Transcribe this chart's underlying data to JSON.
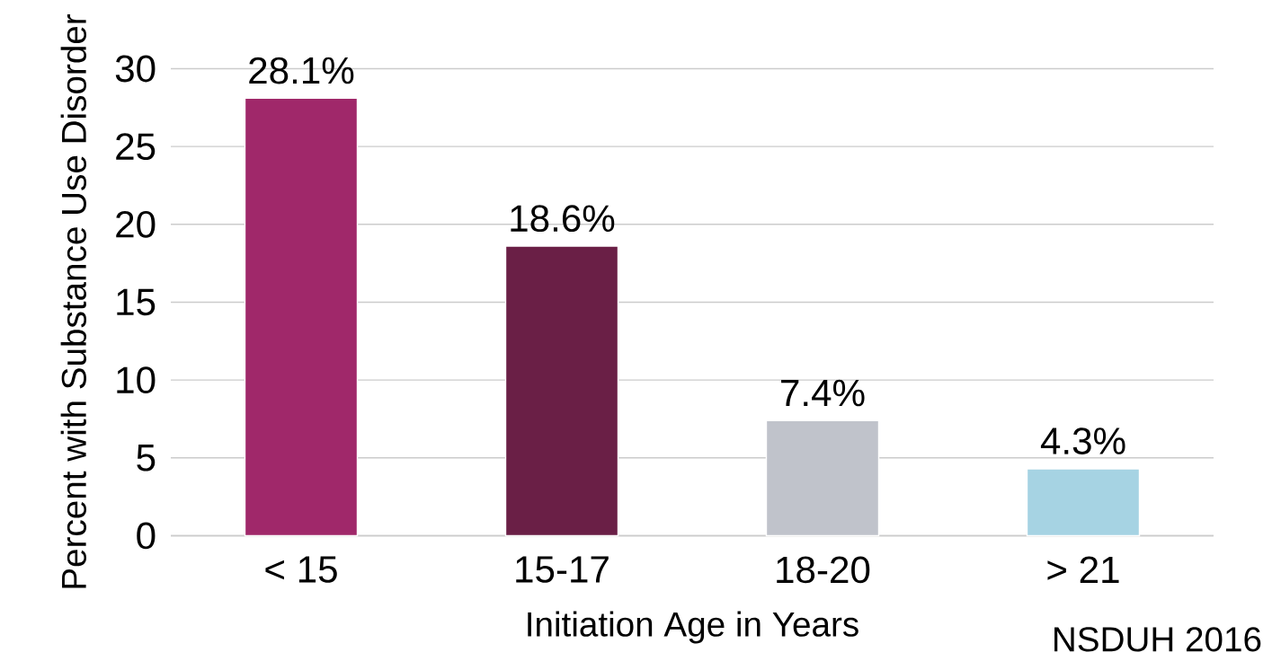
{
  "chart_data": {
    "type": "bar",
    "xlabel": "Initiation Age in Years",
    "ylabel": "Percent with Substance Use Disorder",
    "categories": [
      "< 15",
      "15-17",
      "18-20",
      "> 21"
    ],
    "values": [
      28.1,
      18.6,
      7.4,
      4.3
    ],
    "colors": [
      "#a0286a",
      "#6a1f46",
      "#c0c3cb",
      "#a6d3e3"
    ],
    "value_labels": [
      "28.1%",
      "18.6%",
      "7.4%",
      "4.3%"
    ],
    "ylim": [
      0,
      30
    ],
    "yticks": [
      0,
      5,
      10,
      15,
      20,
      25,
      30
    ],
    "grid": "y",
    "annotations": [
      "NSDUH 2016"
    ]
  }
}
